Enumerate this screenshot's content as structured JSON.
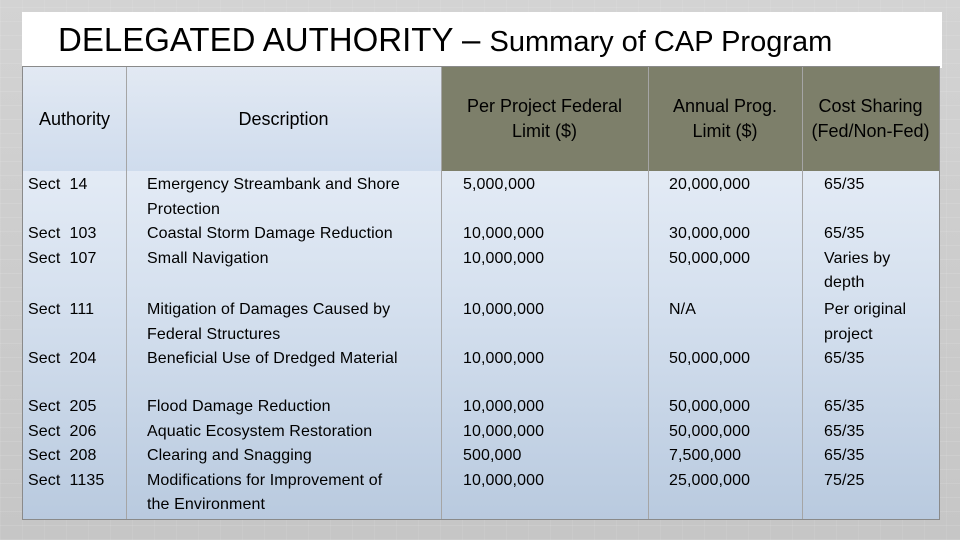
{
  "title": {
    "main": "DELEGATED AUTHORITY – ",
    "sub": "Summary of CAP Program"
  },
  "header": {
    "authority": "Authority",
    "description": "Description",
    "per_project": "Per Project Federal Limit ($)",
    "annual": "Annual Prog. Limit ($)",
    "cost_sharing": "Cost Sharing (Fed/Non-Fed)"
  },
  "groups": [
    {
      "authority": "Sect  14\n\nSect  103\nSect  107",
      "description": "Emergency Streambank and Shore\nProtection\nCoastal Storm Damage Reduction\nSmall Navigation",
      "per_project": "5,000,000\n\n10,000,000\n10,000,000",
      "annual": "20,000,000\n\n30,000,000\n50,000,000",
      "cost_sharing": "65/35\n\n65/35\nVaries by\ndepth"
    },
    {
      "authority": "Sect  111\n\nSect  204",
      "description": "Mitigation of Damages Caused by\nFederal Structures\nBeneficial Use of Dredged Material",
      "per_project": "10,000,000\n\n10,000,000",
      "annual": "N/A\n\n50,000,000",
      "cost_sharing": "Per original\nproject\n65/35"
    },
    {
      "authority": "Sect  205\nSect  206\nSect  208\nSect  1135",
      "description": "Flood Damage Reduction\nAquatic Ecosystem Restoration\nClearing and Snagging\nModifications for Improvement of\nthe Environment",
      "per_project": "10,000,000\n10,000,000\n500,000\n10,000,000",
      "annual": "50,000,000\n50,000,000\n7,500,000\n25,000,000",
      "cost_sharing": "65/35\n65/35\n65/35\n75/25"
    }
  ]
}
